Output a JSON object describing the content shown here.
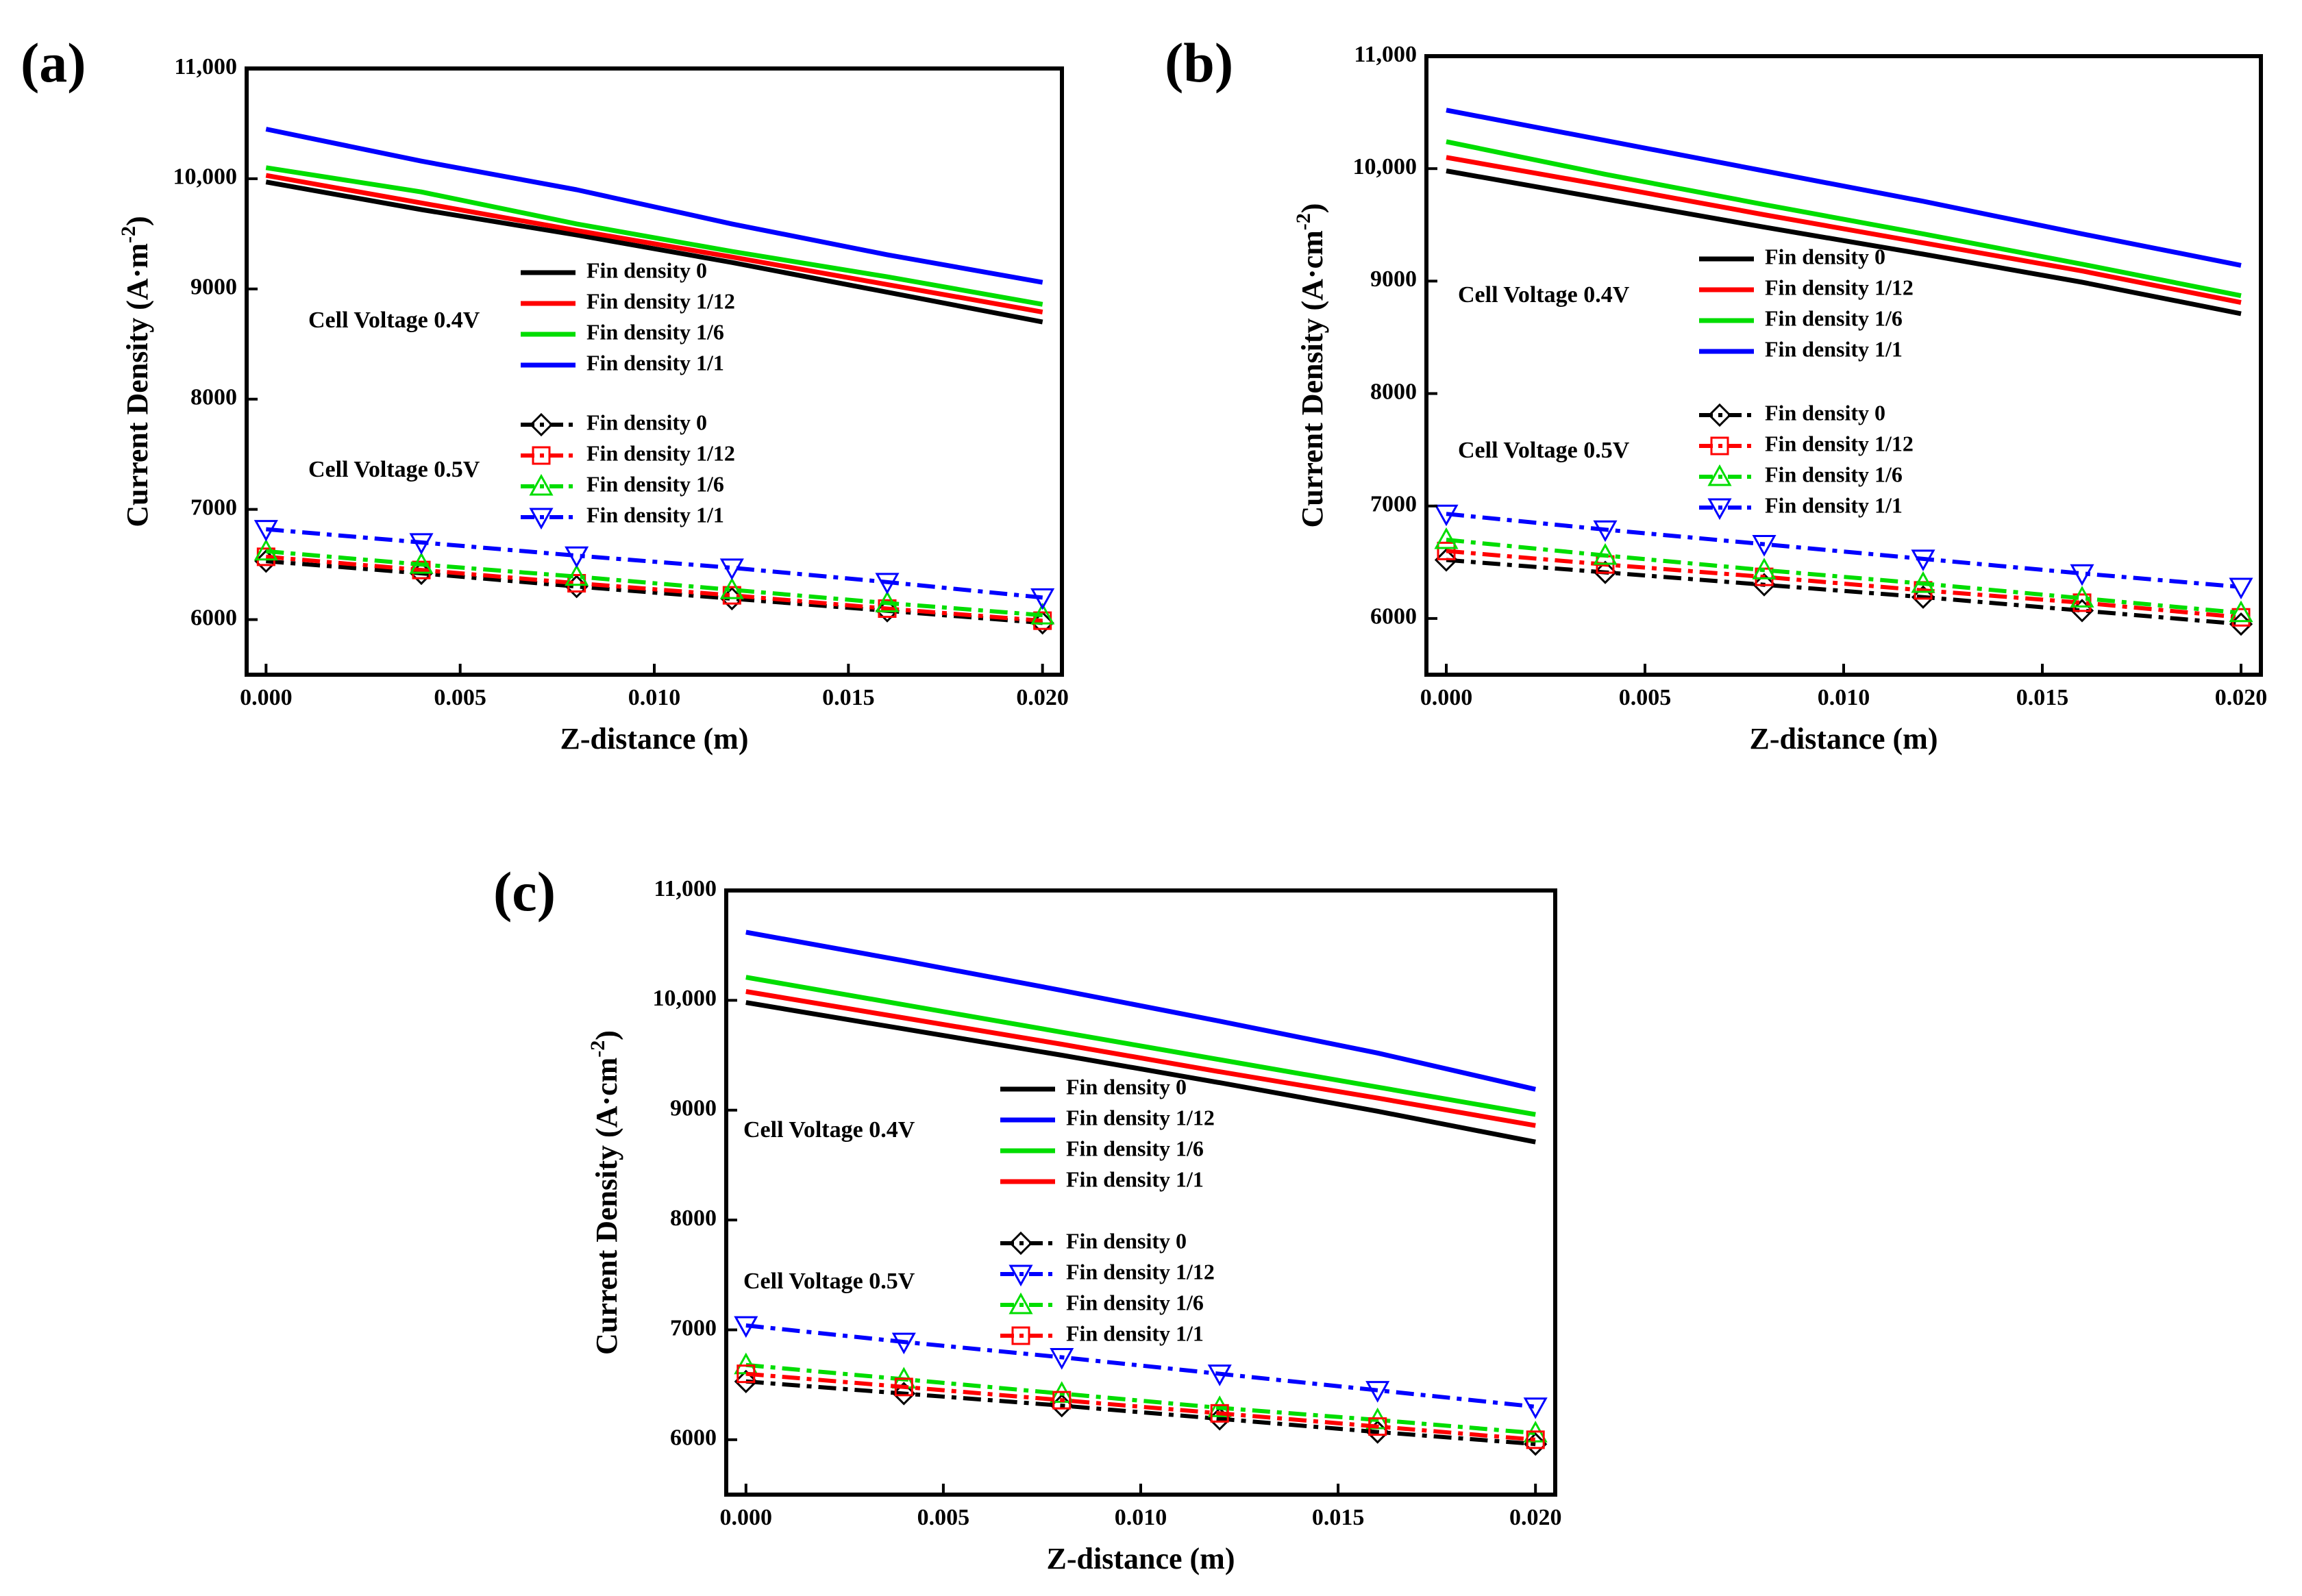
{
  "figure": {
    "background": "#ffffff"
  },
  "chart_data": [
    {
      "type": "line",
      "panel_label": "(a)",
      "xlabel": "Z-distance (m)",
      "ylabel": "Current Density (A·m",
      "ylabel_exponent": "-2",
      "ylabel_close": ")",
      "xlim": [
        -0.0005,
        0.0205
      ],
      "ylim": [
        5500,
        11000
      ],
      "xticks": [
        0,
        0.005,
        0.01,
        0.015,
        0.02
      ],
      "xtick_labels": [
        "0.000",
        "0.005",
        "0.010",
        "0.015",
        "0.020"
      ],
      "yticks": [
        6000,
        7000,
        8000,
        9000,
        10000,
        11000
      ],
      "ytick_labels": [
        "6000",
        "7000",
        "8000",
        "9000",
        "10,000",
        "11,000"
      ],
      "annotations": [
        {
          "text": "Cell Voltage  0.4V",
          "x": 0.0,
          "y": 8680
        },
        {
          "text": "Cell Voltage  0.5V",
          "x": 0.0,
          "y": 7300
        }
      ],
      "legend_groups": [
        {
          "style": "solid",
          "entries": [
            "Fin density 0",
            "Fin density 1/12",
            "Fin density 1/6",
            "Fin density 1/1"
          ]
        },
        {
          "style": "dashdot",
          "entries": [
            "Fin density 0",
            "Fin density 1/12",
            "Fin density 1/6",
            "Fin density 1/1"
          ]
        }
      ],
      "series": [
        {
          "name": "Fin density 0",
          "voltage": "0.4V",
          "color": "#000000",
          "style": "solid",
          "marker": "none",
          "x": [
            0,
            0.004,
            0.008,
            0.012,
            0.016,
            0.02
          ],
          "values": [
            9970,
            9720,
            9490,
            9240,
            8970,
            8700
          ]
        },
        {
          "name": "Fin density 1/12",
          "voltage": "0.4V",
          "color": "#ff0000",
          "style": "solid",
          "marker": "none",
          "x": [
            0,
            0.004,
            0.008,
            0.012,
            0.016,
            0.02
          ],
          "values": [
            10030,
            9780,
            9530,
            9290,
            9040,
            8790
          ]
        },
        {
          "name": "Fin density 1/6",
          "voltage": "0.4V",
          "color": "#00dd00",
          "style": "solid",
          "marker": "none",
          "x": [
            0,
            0.004,
            0.008,
            0.012,
            0.016,
            0.02
          ],
          "values": [
            10100,
            9880,
            9590,
            9340,
            9110,
            8860
          ]
        },
        {
          "name": "Fin density 1/1",
          "voltage": "0.4V",
          "color": "#0000ff",
          "style": "solid",
          "marker": "none",
          "x": [
            0,
            0.004,
            0.008,
            0.012,
            0.016,
            0.02
          ],
          "values": [
            10450,
            10160,
            9900,
            9590,
            9310,
            9060
          ]
        },
        {
          "name": "Fin density 0",
          "voltage": "0.5V",
          "color": "#000000",
          "style": "dashdot",
          "marker": "diamond",
          "x": [
            0,
            0.004,
            0.008,
            0.012,
            0.016,
            0.02
          ],
          "values": [
            6530,
            6420,
            6300,
            6190,
            6080,
            5970
          ]
        },
        {
          "name": "Fin density 1/12",
          "voltage": "0.5V",
          "color": "#ff0000",
          "style": "dashdot",
          "marker": "square",
          "x": [
            0,
            0.004,
            0.008,
            0.012,
            0.016,
            0.02
          ],
          "values": [
            6570,
            6450,
            6330,
            6220,
            6100,
            5990
          ]
        },
        {
          "name": "Fin density 1/6",
          "voltage": "0.5V",
          "color": "#00dd00",
          "style": "dashdot",
          "marker": "triangle-up",
          "x": [
            0,
            0.004,
            0.008,
            0.012,
            0.016,
            0.02
          ],
          "values": [
            6620,
            6500,
            6390,
            6270,
            6150,
            6040
          ]
        },
        {
          "name": "Fin density 1/1",
          "voltage": "0.5V",
          "color": "#0000ff",
          "style": "dashdot",
          "marker": "triangle-down",
          "x": [
            0,
            0.004,
            0.008,
            0.012,
            0.016,
            0.02
          ],
          "values": [
            6820,
            6700,
            6580,
            6470,
            6340,
            6200
          ]
        }
      ]
    },
    {
      "type": "line",
      "panel_label": "(b)",
      "xlabel": "Z-distance (m)",
      "ylabel": "Current Density (A·cm",
      "ylabel_exponent": "-2",
      "ylabel_close": ")",
      "xlim": [
        -0.0005,
        0.0205
      ],
      "ylim": [
        5500,
        11000
      ],
      "xticks": [
        0,
        0.005,
        0.01,
        0.015,
        0.02
      ],
      "xtick_labels": [
        "0.000",
        "0.005",
        "0.010",
        "0.015",
        "0.020"
      ],
      "yticks": [
        6000,
        7000,
        8000,
        9000,
        10000,
        11000
      ],
      "ytick_labels": [
        "6000",
        "7000",
        "8000",
        "9000",
        "10,000",
        "11,000"
      ],
      "annotations": [
        {
          "text": "Cell Voltage  0.4V",
          "x": 0.0,
          "y": 8850
        },
        {
          "text": "Cell Voltage  0.5V",
          "x": 0.0,
          "y": 7470
        }
      ],
      "legend_groups": [
        {
          "style": "solid",
          "entries": [
            "Fin density 0",
            "Fin density 1/12",
            "Fin density 1/6",
            "Fin density 1/1"
          ]
        },
        {
          "style": "dashdot",
          "entries": [
            "Fin density 0",
            "Fin density 1/12",
            "Fin density 1/6",
            "Fin density 1/1"
          ]
        }
      ],
      "series": [
        {
          "name": "Fin density 0",
          "voltage": "0.4V",
          "color": "#000000",
          "style": "solid",
          "marker": "none",
          "x": [
            0,
            0.004,
            0.008,
            0.012,
            0.016,
            0.02
          ],
          "values": [
            9980,
            9730,
            9480,
            9240,
            8990,
            8710
          ]
        },
        {
          "name": "Fin density 1/12",
          "voltage": "0.4V",
          "color": "#ff0000",
          "style": "solid",
          "marker": "none",
          "x": [
            0,
            0.004,
            0.008,
            0.012,
            0.016,
            0.02
          ],
          "values": [
            10100,
            9850,
            9590,
            9340,
            9090,
            8810
          ]
        },
        {
          "name": "Fin density 1/6",
          "voltage": "0.4V",
          "color": "#00dd00",
          "style": "solid",
          "marker": "none",
          "x": [
            0,
            0.004,
            0.008,
            0.012,
            0.016,
            0.02
          ],
          "values": [
            10240,
            9950,
            9680,
            9420,
            9150,
            8870
          ]
        },
        {
          "name": "Fin density 1/1",
          "voltage": "0.4V",
          "color": "#0000ff",
          "style": "solid",
          "marker": "none",
          "x": [
            0,
            0.004,
            0.008,
            0.012,
            0.016,
            0.02
          ],
          "values": [
            10520,
            10250,
            9980,
            9710,
            9420,
            9140
          ]
        },
        {
          "name": "Fin density 0",
          "voltage": "0.5V",
          "color": "#000000",
          "style": "dashdot",
          "marker": "diamond",
          "x": [
            0,
            0.004,
            0.008,
            0.012,
            0.016,
            0.02
          ],
          "values": [
            6520,
            6410,
            6300,
            6190,
            6070,
            5950
          ]
        },
        {
          "name": "Fin density 1/12",
          "voltage": "0.5V",
          "color": "#ff0000",
          "style": "dashdot",
          "marker": "square",
          "x": [
            0,
            0.004,
            0.008,
            0.012,
            0.016,
            0.02
          ],
          "values": [
            6600,
            6480,
            6370,
            6250,
            6140,
            6010
          ]
        },
        {
          "name": "Fin density 1/6",
          "voltage": "0.5V",
          "color": "#00dd00",
          "style": "dashdot",
          "marker": "triangle-up",
          "x": [
            0,
            0.004,
            0.008,
            0.012,
            0.016,
            0.02
          ],
          "values": [
            6700,
            6560,
            6430,
            6310,
            6180,
            6050
          ]
        },
        {
          "name": "Fin density 1/1",
          "voltage": "0.5V",
          "color": "#0000ff",
          "style": "dashdot",
          "marker": "triangle-down",
          "x": [
            0,
            0.004,
            0.008,
            0.012,
            0.016,
            0.02
          ],
          "values": [
            6930,
            6790,
            6660,
            6530,
            6400,
            6280
          ]
        }
      ]
    },
    {
      "type": "line",
      "panel_label": "(c)",
      "xlabel": "Z-distance (m)",
      "ylabel": "Current Density (A·cm",
      "ylabel_exponent": "-2",
      "ylabel_close": ")",
      "xlim": [
        -0.0005,
        0.0205
      ],
      "ylim": [
        5500,
        11000
      ],
      "xticks": [
        0,
        0.005,
        0.01,
        0.015,
        0.02
      ],
      "xtick_labels": [
        "0.000",
        "0.005",
        "0.010",
        "0.015",
        "0.020"
      ],
      "yticks": [
        6000,
        7000,
        8000,
        9000,
        10000,
        11000
      ],
      "ytick_labels": [
        "6000",
        "7000",
        "8000",
        "9000",
        "10,000",
        "11,000"
      ],
      "annotations": [
        {
          "text": "Cell Voltage  0.4V",
          "x": 0.0,
          "y": 8800
        },
        {
          "text": "Cell Voltage  0.5V",
          "x": 0.0,
          "y": 7440
        }
      ],
      "legend_groups": [
        {
          "style": "solid",
          "entries": [
            "Fin density 0",
            "Fin density 1/12",
            "Fin density 1/6",
            "Fin density 1/1"
          ]
        },
        {
          "style": "dashdot",
          "entries": [
            "Fin density 0",
            "Fin density 1/12",
            "Fin density 1/6",
            "Fin density 1/1"
          ]
        }
      ],
      "series": [
        {
          "name": "Fin density 0",
          "voltage": "0.4V",
          "color": "#000000",
          "style": "solid",
          "marker": "none",
          "x": [
            0,
            0.004,
            0.008,
            0.012,
            0.016,
            0.02
          ],
          "values": [
            9980,
            9740,
            9500,
            9250,
            8990,
            8710
          ]
        },
        {
          "name": "Fin density 1/12",
          "voltage": "0.4V",
          "color": "#0000ff",
          "style": "solid",
          "marker": "none",
          "x": [
            0,
            0.004,
            0.008,
            0.012,
            0.016,
            0.02
          ],
          "values": [
            10620,
            10360,
            10090,
            9810,
            9520,
            9190
          ]
        },
        {
          "name": "Fin density 1/6",
          "voltage": "0.4V",
          "color": "#00dd00",
          "style": "solid",
          "marker": "none",
          "x": [
            0,
            0.004,
            0.008,
            0.012,
            0.016,
            0.02
          ],
          "values": [
            10210,
            9960,
            9710,
            9460,
            9210,
            8960
          ]
        },
        {
          "name": "Fin density 1/1",
          "voltage": "0.4V",
          "color": "#ff0000",
          "style": "solid",
          "marker": "none",
          "x": [
            0,
            0.004,
            0.008,
            0.012,
            0.016,
            0.02
          ],
          "values": [
            10080,
            9840,
            9600,
            9350,
            9110,
            8860
          ]
        },
        {
          "name": "Fin density 0",
          "voltage": "0.5V",
          "color": "#000000",
          "style": "dashdot",
          "marker": "diamond",
          "x": [
            0,
            0.004,
            0.008,
            0.012,
            0.016,
            0.02
          ],
          "values": [
            6530,
            6420,
            6310,
            6190,
            6070,
            5960
          ]
        },
        {
          "name": "Fin density 1/12",
          "voltage": "0.5V",
          "color": "#0000ff",
          "style": "dashdot",
          "marker": "triangle-down",
          "x": [
            0,
            0.004,
            0.008,
            0.012,
            0.016,
            0.02
          ],
          "values": [
            7040,
            6890,
            6750,
            6600,
            6450,
            6300
          ]
        },
        {
          "name": "Fin density 1/6",
          "voltage": "0.5V",
          "color": "#00dd00",
          "style": "dashdot",
          "marker": "triangle-up",
          "x": [
            0,
            0.004,
            0.008,
            0.012,
            0.016,
            0.02
          ],
          "values": [
            6680,
            6550,
            6420,
            6290,
            6180,
            6060
          ]
        },
        {
          "name": "Fin density 1/1",
          "voltage": "0.5V",
          "color": "#ff0000",
          "style": "dashdot",
          "marker": "square",
          "x": [
            0,
            0.004,
            0.008,
            0.012,
            0.016,
            0.02
          ],
          "values": [
            6600,
            6480,
            6360,
            6240,
            6120,
            6000
          ]
        }
      ]
    }
  ]
}
